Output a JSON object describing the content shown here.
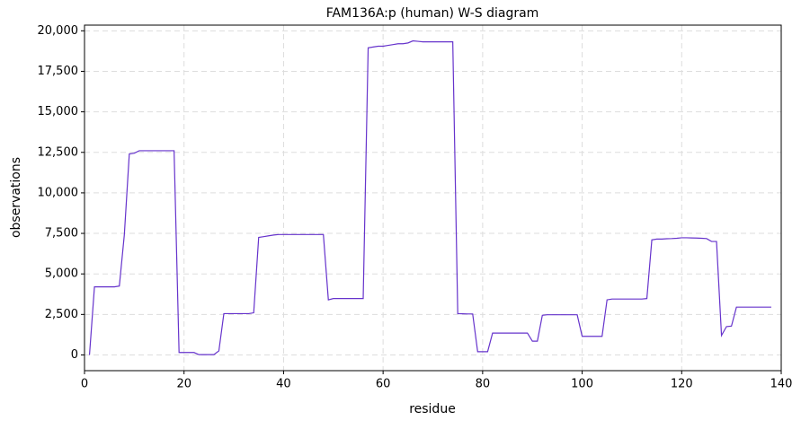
{
  "chart_data": {
    "type": "line",
    "title": "FAM136A:p (human) W-S diagram",
    "x_label": "residue",
    "y_label": "observations",
    "x": [
      1,
      2,
      3,
      4,
      5,
      6,
      7,
      8,
      9,
      10,
      11,
      12,
      13,
      14,
      15,
      16,
      17,
      18,
      19,
      20,
      21,
      22,
      23,
      24,
      25,
      26,
      27,
      28,
      29,
      30,
      31,
      32,
      33,
      34,
      35,
      36,
      37,
      38,
      39,
      40,
      41,
      42,
      43,
      44,
      45,
      46,
      47,
      48,
      49,
      50,
      51,
      52,
      53,
      54,
      55,
      56,
      57,
      58,
      59,
      60,
      61,
      62,
      63,
      64,
      65,
      66,
      67,
      68,
      69,
      70,
      71,
      72,
      73,
      74,
      75,
      76,
      77,
      78,
      79,
      80,
      81,
      82,
      83,
      84,
      85,
      86,
      87,
      88,
      89,
      90,
      91,
      92,
      93,
      94,
      95,
      96,
      97,
      98,
      99,
      100,
      101,
      102,
      103,
      104,
      105,
      106,
      107,
      108,
      109,
      110,
      111,
      112,
      113,
      114,
      115,
      116,
      117,
      118,
      119,
      120,
      121,
      122,
      123,
      124,
      125,
      126,
      127,
      128,
      129,
      130,
      131,
      132,
      133,
      134,
      135,
      136,
      137,
      138
    ],
    "series": [
      {
        "name": "observations",
        "color": "#6633cc",
        "values": [
          0,
          4200,
          4200,
          4200,
          4200,
          4200,
          4250,
          7400,
          12400,
          12450,
          12600,
          12600,
          12600,
          12600,
          12600,
          12600,
          12600,
          12600,
          150,
          150,
          150,
          150,
          20,
          20,
          20,
          20,
          250,
          2550,
          2550,
          2550,
          2550,
          2550,
          2550,
          2600,
          7250,
          7300,
          7350,
          7400,
          7430,
          7430,
          7430,
          7430,
          7430,
          7430,
          7430,
          7430,
          7430,
          7430,
          3400,
          3480,
          3480,
          3480,
          3480,
          3480,
          3480,
          3480,
          18950,
          19000,
          19050,
          19050,
          19100,
          19150,
          19200,
          19200,
          19250,
          19380,
          19350,
          19320,
          19320,
          19320,
          19320,
          19320,
          19320,
          19320,
          2550,
          2540,
          2530,
          2530,
          200,
          200,
          200,
          1350,
          1350,
          1350,
          1350,
          1350,
          1350,
          1350,
          1350,
          850,
          850,
          2450,
          2480,
          2480,
          2480,
          2480,
          2480,
          2480,
          2480,
          1150,
          1150,
          1150,
          1150,
          1150,
          3400,
          3450,
          3450,
          3450,
          3450,
          3450,
          3450,
          3450,
          3480,
          7100,
          7150,
          7150,
          7170,
          7180,
          7200,
          7230,
          7230,
          7220,
          7210,
          7200,
          7180,
          7000,
          7000,
          1200,
          1750,
          1780,
          2950,
          2950,
          2950,
          2950,
          2950,
          2950,
          2950,
          2950
        ]
      }
    ],
    "xlim": [
      0,
      140
    ],
    "xticks": [
      0,
      20,
      40,
      60,
      80,
      100,
      120,
      140
    ],
    "ylim": [
      -970,
      20350
    ],
    "yticks": [
      0,
      {
        "value": 2500,
        "label": "2,500"
      },
      {
        "value": 5000,
        "label": "5,000"
      },
      {
        "value": 7500,
        "label": "7,500"
      },
      {
        "value": 10000,
        "label": "10,000"
      },
      {
        "value": 12500,
        "label": "12,500"
      },
      {
        "value": 15000,
        "label": "15,000"
      },
      {
        "value": 17500,
        "label": "17,500"
      },
      {
        "value": 20000,
        "label": "20,000"
      }
    ],
    "grid": true
  }
}
